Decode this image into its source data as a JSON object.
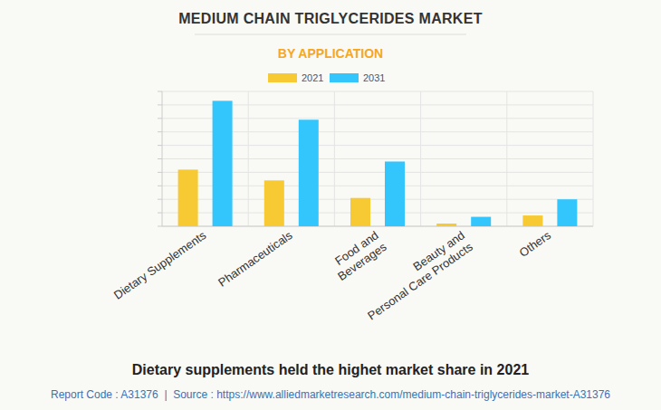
{
  "chart_data": {
    "type": "bar",
    "title": "MEDIUM CHAIN TRIGLYCERIDES MARKET",
    "subtitle": "BY APPLICATION",
    "categories": [
      "Dietary Supplements",
      "Pharmaceuticals",
      "Food and Beverages",
      "Beauty and Personal Care Products",
      "Others"
    ],
    "series": [
      {
        "name": "2021",
        "color": "#f7c932",
        "values": [
          4.2,
          3.4,
          2.1,
          0.2,
          0.8
        ]
      },
      {
        "name": "2031",
        "color": "#33c6fd",
        "values": [
          9.3,
          7.9,
          4.8,
          0.7,
          2.0
        ]
      }
    ],
    "ylim": [
      0,
      10
    ],
    "yticks": [
      0,
      1,
      2,
      3,
      4,
      5,
      6,
      7,
      8,
      9,
      10
    ],
    "grid": true,
    "tick_labels": "x",
    "legend": "top",
    "annotations": [
      "Dietary supplements held the highet market share in 2021",
      "Report Code : A31376  |  Source : https://www.alliedmarketresearch.com/medium-chain-triglycerides-market-A31376"
    ]
  }
}
